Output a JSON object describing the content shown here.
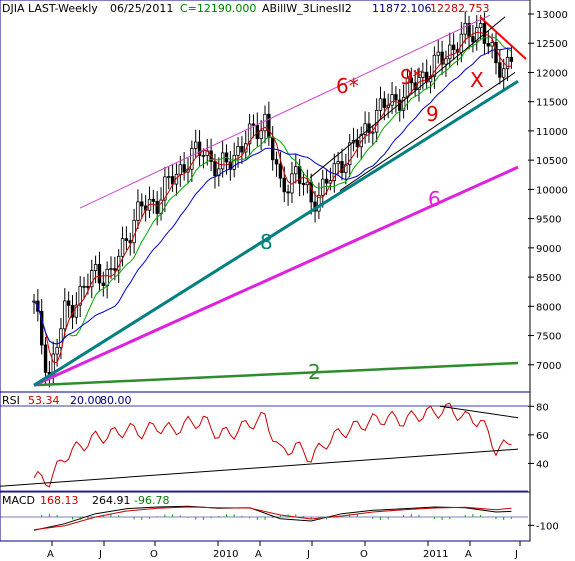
{
  "header": {
    "symbol": "DJIA LAST-Weekly",
    "date": "06/25/2011",
    "close": "C=12190.000",
    "study": "ABillW_3LinesII2",
    "study_v1": "11872.106",
    "study_v2": "12282.753"
  },
  "colors": {
    "candles": "#000000",
    "ma_red": "#cc0000",
    "ma_green": "#00aa00",
    "ma_blue": "#0000cc",
    "line_6": "#e020e0",
    "line_8": "#008080",
    "line_2": "#2e8b2e",
    "channel_6star": "#d040d0",
    "resist_red": "#ff0000",
    "rsi_line": "#cc0000",
    "macd_hist": "#00aa00",
    "panel_border": "#000080",
    "grid_dash": "#7080a0"
  },
  "chart_data": [
    {
      "type": "candlestick",
      "title": "DJIA LAST-Weekly",
      "ylim": [
        6500,
        13000
      ],
      "yticks": [
        "13000",
        "12500",
        "12000",
        "11500",
        "11000",
        "10500",
        "10000",
        "9500",
        "9000",
        "8500",
        "8000",
        "7500",
        "7000"
      ],
      "xticks": [
        "A",
        "J",
        "O",
        "2010",
        "A",
        "J",
        "O",
        "2011",
        "A",
        "J"
      ],
      "series": [
        {
          "name": "DJIA",
          "x": [
            0,
            4,
            8,
            12,
            16,
            20,
            24,
            28,
            32,
            36,
            40,
            44,
            48,
            52,
            56,
            60,
            64,
            68,
            72,
            76,
            80,
            84,
            88,
            92,
            96,
            100,
            104,
            108,
            112,
            116,
            120,
            124
          ],
          "values": [
            8000,
            6800,
            7900,
            8200,
            8600,
            8500,
            9200,
            9700,
            9800,
            10200,
            10500,
            10700,
            10300,
            10600,
            10900,
            11200,
            10000,
            10300,
            9800,
            10100,
            10500,
            10800,
            11200,
            11500,
            11600,
            11900,
            12100,
            12400,
            12600,
            12800,
            12100,
            12190
          ]
        }
      ],
      "annotations": [
        {
          "label": "6*",
          "color": "red"
        },
        {
          "label": "9*",
          "color": "red"
        },
        {
          "label": "9",
          "color": "red"
        },
        {
          "label": "X",
          "color": "red"
        },
        {
          "label": "8",
          "color": "teal"
        },
        {
          "label": "6",
          "color": "magenta"
        },
        {
          "label": "2",
          "color": "green"
        }
      ]
    },
    {
      "type": "line",
      "title": "RSI",
      "values_printed": [
        "53.34",
        "20.00",
        "80.00"
      ],
      "ylim": [
        20,
        90
      ],
      "yticks": [
        "80",
        "60",
        "40"
      ],
      "reference_lines": [
        20,
        80
      ],
      "series": [
        {
          "name": "RSI",
          "x": [
            0,
            4,
            8,
            12,
            16,
            20,
            24,
            28,
            32,
            36,
            40,
            44,
            48,
            52,
            56,
            60,
            64,
            68,
            72,
            76,
            80,
            84,
            88,
            92,
            96,
            100,
            104,
            108,
            112,
            116,
            120,
            124
          ],
          "values": [
            30,
            28,
            45,
            52,
            58,
            60,
            64,
            62,
            66,
            63,
            68,
            70,
            60,
            62,
            68,
            72,
            48,
            52,
            44,
            55,
            62,
            66,
            70,
            72,
            70,
            74,
            76,
            78,
            72,
            70,
            50,
            53
          ]
        }
      ]
    },
    {
      "type": "line",
      "title": "MACD",
      "values_printed": [
        "168.13",
        "264.91",
        "-96.78"
      ],
      "yticks": [
        "-100"
      ],
      "series": [
        {
          "name": "MACD",
          "x": [
            0,
            8,
            16,
            24,
            32,
            40,
            48,
            56,
            64,
            72,
            80,
            88,
            96,
            104,
            112,
            120,
            124
          ],
          "values": [
            -400,
            -200,
            100,
            250,
            300,
            320,
            260,
            280,
            -50,
            -120,
            100,
            200,
            250,
            300,
            280,
            150,
            168
          ]
        },
        {
          "name": "Signal",
          "x": [
            0,
            8,
            16,
            24,
            32,
            40,
            48,
            56,
            64,
            72,
            80,
            88,
            96,
            104,
            112,
            120,
            124
          ],
          "values": [
            -380,
            -260,
            0,
            180,
            260,
            300,
            280,
            270,
            60,
            -60,
            30,
            150,
            220,
            270,
            290,
            220,
            265
          ]
        }
      ]
    }
  ]
}
